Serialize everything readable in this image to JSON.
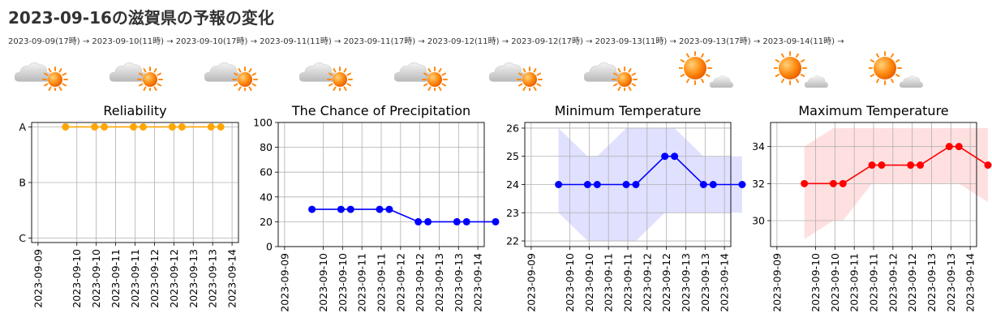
{
  "page": {
    "title": "2023-09-16の滋賀県の予報の変化",
    "timeline": "2023-09-09(17時) → 2023-09-10(11時) → 2023-09-10(17時) → 2023-09-11(11時) → 2023-09-11(17時) → 2023-09-12(11時) → 2023-09-12(17時) → 2023-09-13(11時) → 2023-09-13(17時) → 2023-09-14(11時) →"
  },
  "weather_icons": [
    "cloudy-then-sunny-icon",
    "cloudy-then-sunny-icon",
    "cloudy-then-sunny-icon",
    "cloudy-then-sunny-icon",
    "cloudy-then-sunny-icon",
    "cloudy-then-sunny-icon",
    "cloudy-then-sunny-icon",
    "sunny-then-cloudy-icon",
    "sunny-then-cloudy-icon",
    "sunny-then-cloudy-icon"
  ],
  "chart_data": [
    {
      "type": "line",
      "title": "Reliability",
      "x": [
        "2023-09-09 17:00",
        "2023-09-10 11:00",
        "2023-09-10 17:00",
        "2023-09-11 11:00",
        "2023-09-11 17:00",
        "2023-09-12 11:00",
        "2023-09-12 17:00",
        "2023-09-13 11:00",
        "2023-09-13 17:00"
      ],
      "values": [
        "A",
        "A",
        "A",
        "A",
        "A",
        "A",
        "A",
        "A",
        "A"
      ],
      "y_categories": [
        "A",
        "B",
        "C"
      ],
      "xticks": [
        "2023-09-09",
        "2023-09-10",
        "2023-09-10",
        "2023-09-11",
        "2023-09-11",
        "2023-09-12",
        "2023-09-12",
        "2023-09-13",
        "2023-09-13",
        "2023-09-14"
      ],
      "color": "#FFA500",
      "grid": true
    },
    {
      "type": "line",
      "title": "The Chance of Precipitation",
      "x": [
        "2023-09-09 17:00",
        "2023-09-10 11:00",
        "2023-09-10 17:00",
        "2023-09-11 11:00",
        "2023-09-11 17:00",
        "2023-09-12 11:00",
        "2023-09-12 17:00",
        "2023-09-13 11:00",
        "2023-09-13 17:00",
        "2023-09-14 11:00"
      ],
      "values": [
        30,
        30,
        30,
        30,
        30,
        20,
        20,
        20,
        20,
        20
      ],
      "ylim": [
        0,
        100
      ],
      "yticks": [
        0,
        20,
        40,
        60,
        80,
        100
      ],
      "xticks": [
        "2023-09-09",
        "2023-09-10",
        "2023-09-10",
        "2023-09-11",
        "2023-09-11",
        "2023-09-12",
        "2023-09-12",
        "2023-09-13",
        "2023-09-13",
        "2023-09-14"
      ],
      "color": "#0000FF",
      "grid": true
    },
    {
      "type": "line",
      "title": "Minimum Temperature",
      "x": [
        "2023-09-09 17:00",
        "2023-09-10 11:00",
        "2023-09-10 17:00",
        "2023-09-11 11:00",
        "2023-09-11 17:00",
        "2023-09-12 11:00",
        "2023-09-12 17:00",
        "2023-09-13 11:00",
        "2023-09-13 17:00",
        "2023-09-14 11:00"
      ],
      "values": [
        24,
        24,
        24,
        24,
        24,
        25,
        25,
        24,
        24,
        24
      ],
      "band_low": [
        23,
        22,
        22,
        22,
        22,
        23,
        23,
        23,
        23,
        23
      ],
      "band_high": [
        26,
        25,
        25,
        26,
        26,
        26,
        26,
        25,
        25,
        25
      ],
      "ylim": [
        21.8,
        26.2
      ],
      "yticks": [
        22,
        23,
        24,
        25,
        26
      ],
      "xticks": [
        "2023-09-09",
        "2023-09-10",
        "2023-09-10",
        "2023-09-11",
        "2023-09-11",
        "2023-09-12",
        "2023-09-12",
        "2023-09-13",
        "2023-09-13",
        "2023-09-14"
      ],
      "color": "#0000FF",
      "band_color": "#0000FF",
      "grid": true
    },
    {
      "type": "line",
      "title": "Maximum Temperature",
      "x": [
        "2023-09-09 17:00",
        "2023-09-10 11:00",
        "2023-09-10 17:00",
        "2023-09-11 11:00",
        "2023-09-11 17:00",
        "2023-09-12 11:00",
        "2023-09-12 17:00",
        "2023-09-13 11:00",
        "2023-09-13 17:00",
        "2023-09-14 11:00"
      ],
      "values": [
        32,
        32,
        32,
        33,
        33,
        33,
        33,
        34,
        34,
        33
      ],
      "band_low": [
        29,
        30,
        30,
        32,
        32,
        32,
        32,
        32,
        32,
        31
      ],
      "band_high": [
        34,
        35,
        35,
        35,
        35,
        35,
        35,
        35,
        35,
        35
      ],
      "ylim": [
        28.6,
        35.3
      ],
      "yticks": [
        30,
        32,
        34
      ],
      "xticks": [
        "2023-09-09",
        "2023-09-10",
        "2023-09-10",
        "2023-09-11",
        "2023-09-11",
        "2023-09-12",
        "2023-09-12",
        "2023-09-13",
        "2023-09-13",
        "2023-09-14"
      ],
      "color": "#FF0000",
      "band_color": "#FF0000",
      "grid": true
    }
  ]
}
